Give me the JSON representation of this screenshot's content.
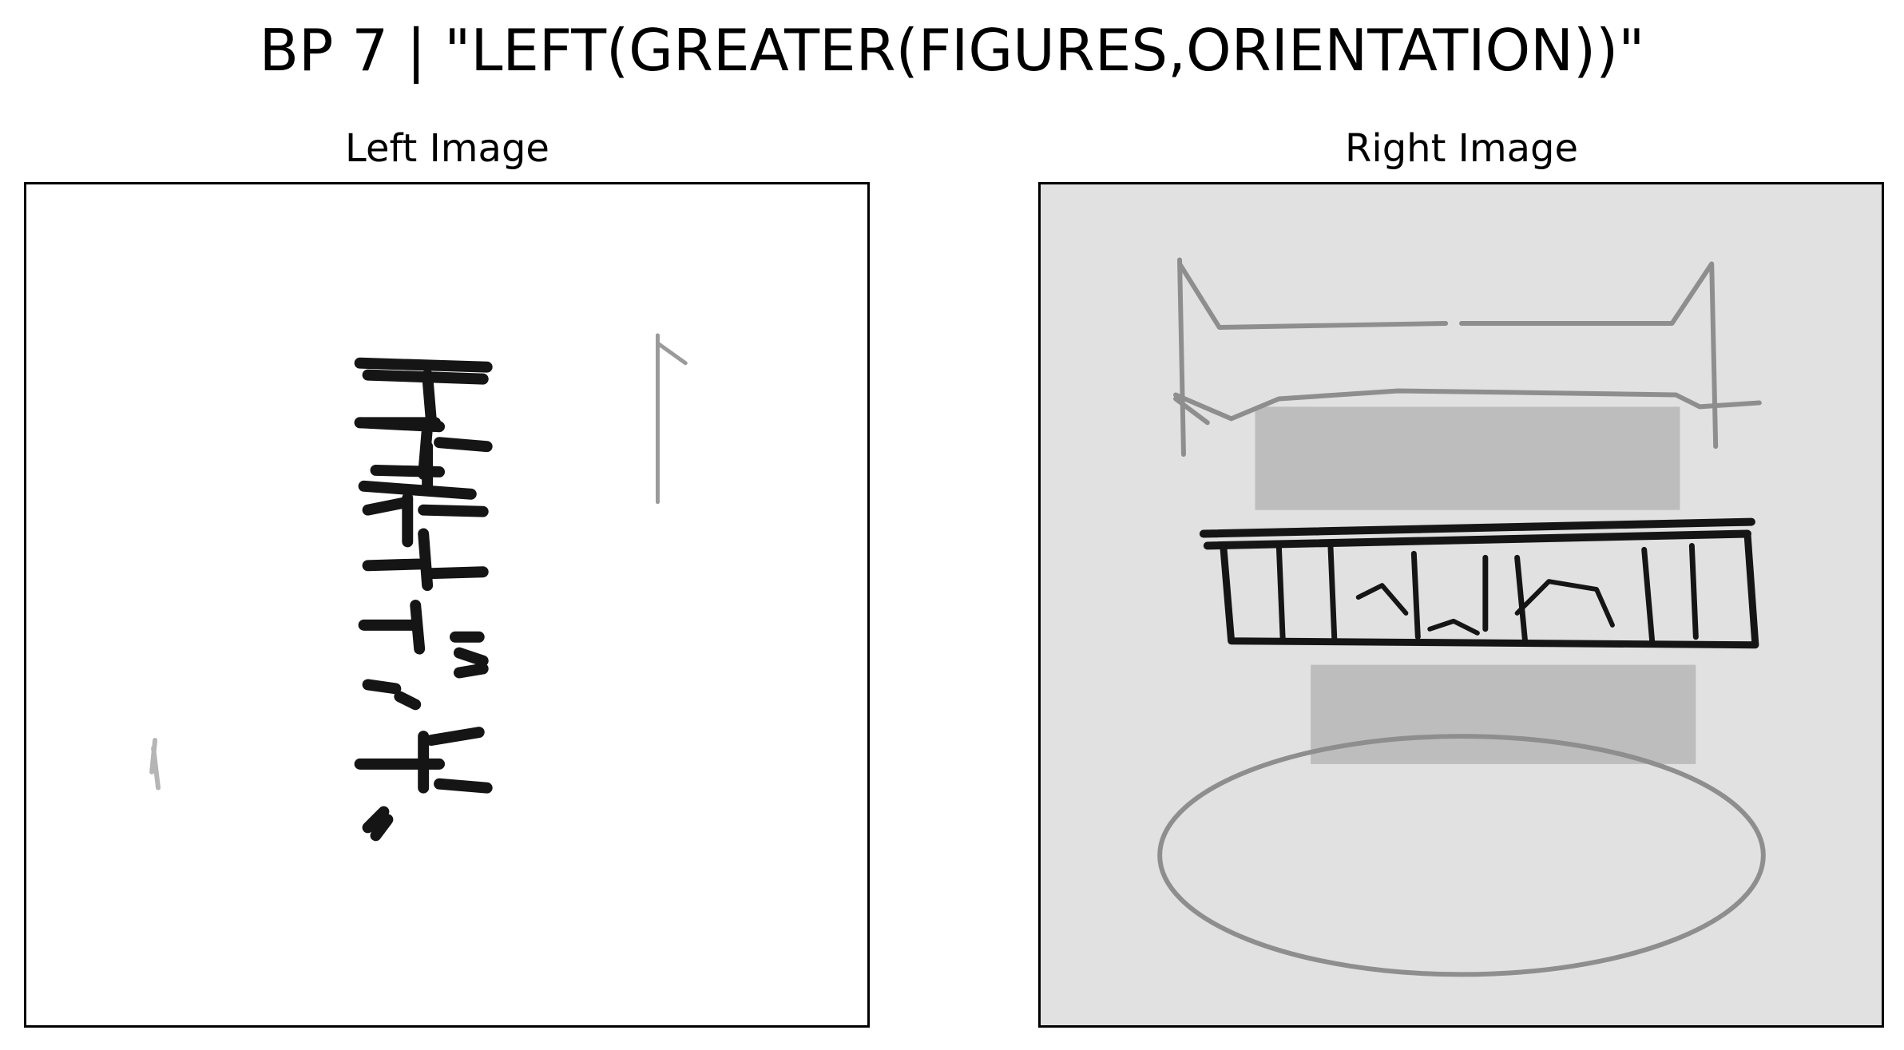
{
  "figure": {
    "title": "BP 7 | \"LEFT(GREATER(FIGURES,ORIENTATION))\""
  },
  "panels": {
    "left": {
      "title": "Left Image"
    },
    "right": {
      "title": "Right Image"
    }
  },
  "colors": {
    "background": "#ffffff",
    "right_panel_background": "#e1e1e1",
    "band_fill": "#bdbdbd",
    "ink_dark": "#151515",
    "ink_light": "#8e8e8e"
  }
}
